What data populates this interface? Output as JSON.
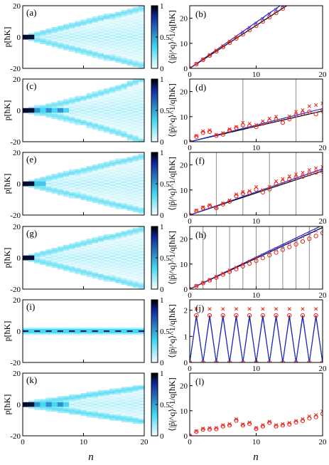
{
  "figure": {
    "x_axis_label": "n",
    "colorbar_ticks": [
      "1",
      "0.5",
      "0"
    ],
    "heatmap_ylabel_parts": [
      "p",
      "[",
      "ħ",
      "K",
      "]"
    ],
    "moment_ylabel_text": "⟨|p̂|^q⟩^1/q[ħK]"
  },
  "colors": {
    "circle": "#e8231a",
    "cross": "#e8231a",
    "purple_cross": "#6a3fc8",
    "blue_line": "#1f2ad6",
    "black_line": "#000000",
    "grid_line": "#8c8c8c",
    "cmap_low": "#ffffff",
    "cmap_mid": "#45d9f2",
    "cmap_high": "#10249a",
    "cmap_top": "#000000"
  },
  "chart_data": [
    {
      "type": "heatmap",
      "label": "(a)",
      "xlim": [
        0,
        20
      ],
      "ylim": [
        -20,
        20
      ],
      "xticks": [
        0,
        10,
        20
      ],
      "yticks": [
        -20,
        0,
        20
      ],
      "pattern": "ballistic",
      "colorbar": [
        0,
        1
      ]
    },
    {
      "type": "scatter",
      "label": "(b)",
      "xlim": [
        0,
        20
      ],
      "ylim": [
        0,
        25
      ],
      "xticks": [
        0,
        10,
        20
      ],
      "yticks": [
        0,
        10,
        20
      ],
      "circles": [
        [
          0,
          0
        ],
        [
          1,
          1.7
        ],
        [
          2,
          3.4
        ],
        [
          3,
          5.1
        ],
        [
          4,
          6.8
        ],
        [
          5,
          8.5
        ],
        [
          6,
          10.2
        ],
        [
          7,
          11.9
        ],
        [
          8,
          13.6
        ],
        [
          9,
          15.3
        ],
        [
          10,
          17.0
        ],
        [
          11,
          18.7
        ],
        [
          12,
          20.4
        ],
        [
          13,
          22.1
        ],
        [
          14,
          23.8
        ]
      ],
      "crosses": [
        [
          0,
          0
        ],
        [
          1,
          1.8
        ],
        [
          2,
          3.6
        ],
        [
          3,
          5.4
        ],
        [
          4,
          7.2
        ],
        [
          5,
          9.0
        ],
        [
          6,
          10.8
        ],
        [
          7,
          12.6
        ],
        [
          8,
          14.4
        ],
        [
          9,
          16.2
        ],
        [
          10,
          18.0
        ],
        [
          11,
          19.8
        ],
        [
          12,
          21.6
        ],
        [
          13,
          23.4
        ],
        [
          14,
          25.0
        ]
      ],
      "black_line": [
        [
          0,
          0
        ],
        [
          14.6,
          25
        ]
      ],
      "blue_line": [
        [
          0,
          0
        ],
        [
          13.6,
          25
        ]
      ],
      "vlines": []
    },
    {
      "type": "heatmap",
      "label": "(c)",
      "xlim": [
        0,
        20
      ],
      "ylim": [
        -20,
        20
      ],
      "xticks": [
        0,
        10,
        20
      ],
      "yticks": [
        -20,
        0,
        20
      ],
      "pattern": "delayed",
      "colorbar": [
        0,
        1
      ]
    },
    {
      "type": "scatter",
      "label": "(d)",
      "xlim": [
        0,
        20
      ],
      "ylim": [
        0,
        25
      ],
      "xticks": [
        0,
        10,
        20
      ],
      "yticks": [
        0,
        10,
        20
      ],
      "circles": [
        [
          0,
          0
        ],
        [
          1,
          2.0
        ],
        [
          2,
          3.6
        ],
        [
          3,
          4.0
        ],
        [
          4,
          2.4
        ],
        [
          5,
          2.9
        ],
        [
          6,
          4.5
        ],
        [
          7,
          5.5
        ],
        [
          8,
          6.6
        ],
        [
          9,
          6.3
        ],
        [
          10,
          5.9
        ],
        [
          11,
          7.3
        ],
        [
          12,
          8.2
        ],
        [
          13,
          8.8
        ],
        [
          14,
          7.6
        ],
        [
          15,
          9.0
        ],
        [
          16,
          10.6
        ],
        [
          17,
          11.3
        ],
        [
          18,
          11.9
        ],
        [
          19,
          11.0
        ],
        [
          20,
          12.3
        ]
      ],
      "crosses": [
        [
          0,
          0
        ],
        [
          1,
          2.4
        ],
        [
          2,
          4.2
        ],
        [
          3,
          4.6
        ],
        [
          4,
          2.8
        ],
        [
          5,
          3.5
        ],
        [
          6,
          5.0
        ],
        [
          7,
          6.0
        ],
        [
          8,
          7.6
        ],
        [
          9,
          7.2
        ],
        [
          10,
          6.7
        ],
        [
          11,
          8.2
        ],
        [
          12,
          9.3
        ],
        [
          13,
          10.0
        ],
        [
          14,
          8.5
        ],
        [
          15,
          10.1
        ],
        [
          16,
          12.0
        ],
        [
          17,
          12.6
        ],
        [
          18,
          14.2
        ],
        [
          19,
          14.6
        ],
        [
          20,
          15.3
        ]
      ],
      "black_line": [
        [
          0,
          0
        ],
        [
          20,
          12.3
        ]
      ],
      "blue_line": [
        [
          0,
          0
        ],
        [
          20,
          13.2
        ]
      ],
      "vlines": [
        8,
        16
      ]
    },
    {
      "type": "heatmap",
      "label": "(e)",
      "xlim": [
        0,
        20
      ],
      "ylim": [
        -20,
        20
      ],
      "xticks": [
        0,
        10,
        20
      ],
      "yticks": [
        -20,
        0,
        20
      ],
      "pattern": "ballistic2",
      "colorbar": [
        0,
        1
      ]
    },
    {
      "type": "scatter",
      "label": "(f)",
      "xlim": [
        0,
        20
      ],
      "ylim": [
        0,
        25
      ],
      "xticks": [
        0,
        10,
        20
      ],
      "yticks": [
        0,
        10,
        20
      ],
      "circles": [
        [
          0,
          0
        ],
        [
          1,
          1.6
        ],
        [
          2,
          2.8
        ],
        [
          3,
          3.6
        ],
        [
          4,
          2.8
        ],
        [
          5,
          4.3
        ],
        [
          6,
          5.4
        ],
        [
          7,
          7.6
        ],
        [
          8,
          8.5
        ],
        [
          9,
          8.9
        ],
        [
          10,
          10.2
        ],
        [
          11,
          9.1
        ],
        [
          12,
          10.3
        ],
        [
          13,
          12.4
        ],
        [
          14,
          13.2
        ],
        [
          15,
          14.2
        ],
        [
          16,
          14.9
        ],
        [
          17,
          15.4
        ],
        [
          18,
          16.4
        ],
        [
          19,
          17.0
        ],
        [
          20,
          17.4
        ]
      ],
      "crosses": [
        [
          0,
          0
        ],
        [
          1,
          1.8
        ],
        [
          2,
          3.1
        ],
        [
          3,
          4.0
        ],
        [
          4,
          3.1
        ],
        [
          5,
          4.7
        ],
        [
          6,
          5.9
        ],
        [
          7,
          8.3
        ],
        [
          8,
          9.2
        ],
        [
          9,
          9.6
        ],
        [
          10,
          11.2
        ],
        [
          11,
          10.0
        ],
        [
          12,
          11.3
        ],
        [
          13,
          13.5
        ],
        [
          14,
          14.4
        ],
        [
          15,
          15.5
        ],
        [
          16,
          16.3
        ],
        [
          17,
          16.9
        ],
        [
          18,
          18.0
        ],
        [
          19,
          18.7
        ],
        [
          20,
          19.2
        ]
      ],
      "black_line": [
        [
          0,
          0
        ],
        [
          20,
          17.6
        ]
      ],
      "blue_line": [
        [
          0,
          0
        ],
        [
          20,
          18.4
        ]
      ],
      "vlines": [
        4,
        8,
        12,
        16
      ]
    },
    {
      "type": "heatmap",
      "label": "(g)",
      "xlim": [
        0,
        20
      ],
      "ylim": [
        -20,
        20
      ],
      "xticks": [
        0,
        10,
        20
      ],
      "yticks": [
        -20,
        0,
        20
      ],
      "pattern": "ballistic",
      "colorbar": [
        0,
        1
      ]
    },
    {
      "type": "scatter",
      "label": "(h)",
      "xlim": [
        0,
        20
      ],
      "ylim": [
        0,
        25
      ],
      "xticks": [
        0,
        10,
        20
      ],
      "yticks": [
        0,
        10,
        20
      ],
      "circles": [
        [
          0,
          0
        ],
        [
          1,
          1.2
        ],
        [
          2,
          2.4
        ],
        [
          3,
          3.5
        ],
        [
          4,
          4.6
        ],
        [
          5,
          5.8
        ],
        [
          6,
          6.9
        ],
        [
          7,
          8.0
        ],
        [
          8,
          9.1
        ],
        [
          9,
          10.2
        ],
        [
          10,
          11.3
        ],
        [
          11,
          12.4
        ],
        [
          12,
          13.5
        ],
        [
          13,
          14.6
        ],
        [
          14,
          15.7
        ],
        [
          15,
          16.8
        ],
        [
          16,
          17.9
        ],
        [
          17,
          19.0
        ],
        [
          18,
          20.1
        ],
        [
          19,
          21.2
        ],
        [
          20,
          22.4
        ]
      ],
      "crosses": [
        [
          0,
          0
        ],
        [
          1,
          1.3
        ],
        [
          2,
          2.6
        ],
        [
          3,
          3.8
        ],
        [
          4,
          5.0
        ],
        [
          5,
          6.3
        ],
        [
          6,
          7.5
        ],
        [
          7,
          8.7
        ],
        [
          8,
          9.9
        ],
        [
          9,
          11.1
        ],
        [
          10,
          12.3
        ],
        [
          11,
          13.6
        ],
        [
          12,
          14.8
        ],
        [
          13,
          16.0
        ],
        [
          14,
          17.2
        ],
        [
          15,
          18.4
        ],
        [
          16,
          19.6
        ],
        [
          17,
          20.9
        ],
        [
          18,
          22.1
        ],
        [
          19,
          23.3
        ],
        [
          20,
          24.6
        ]
      ],
      "black_line": [
        [
          0,
          0
        ],
        [
          20,
          24.6
        ]
      ],
      "blue_line": [
        [
          0,
          0
        ],
        [
          20,
          25.5
        ]
      ],
      "vlines": [
        2,
        4,
        6,
        8,
        10,
        12,
        14,
        16,
        18
      ]
    },
    {
      "type": "heatmap",
      "label": "(i)",
      "xlim": [
        0,
        20
      ],
      "ylim": [
        -20,
        20
      ],
      "xticks": [
        0,
        10,
        20
      ],
      "yticks": [
        -20,
        0,
        20
      ],
      "pattern": "localized",
      "colorbar": [
        0,
        1
      ]
    },
    {
      "type": "scatter",
      "label": "(j)",
      "xlim": [
        0,
        20
      ],
      "ylim": [
        0,
        2.4
      ],
      "xticks": [
        0,
        10,
        20
      ],
      "yticks": [
        0,
        1,
        2
      ],
      "circles": [
        [
          0,
          0
        ],
        [
          1,
          1.8
        ],
        [
          2,
          0
        ],
        [
          3,
          1.8
        ],
        [
          4,
          0
        ],
        [
          5,
          1.8
        ],
        [
          6,
          0
        ],
        [
          7,
          1.8
        ],
        [
          8,
          0
        ],
        [
          9,
          1.8
        ],
        [
          10,
          0
        ],
        [
          11,
          1.8
        ],
        [
          12,
          0
        ],
        [
          13,
          1.8
        ],
        [
          14,
          0
        ],
        [
          15,
          1.8
        ],
        [
          16,
          0
        ],
        [
          17,
          1.8
        ],
        [
          18,
          0
        ],
        [
          19,
          1.8
        ],
        [
          20,
          0
        ]
      ],
      "crosses": [
        [
          1,
          2.05
        ],
        [
          3,
          2.05
        ],
        [
          5,
          2.05
        ],
        [
          7,
          2.05
        ],
        [
          9,
          2.05
        ],
        [
          11,
          2.05
        ],
        [
          13,
          2.05
        ],
        [
          15,
          2.05
        ],
        [
          17,
          2.05
        ],
        [
          19,
          2.05
        ]
      ],
      "zigzag": true,
      "black_line": [],
      "blue_line": [],
      "vlines": []
    },
    {
      "type": "heatmap",
      "label": "(k)",
      "xlim": [
        0,
        20
      ],
      "ylim": [
        -20,
        20
      ],
      "xticks": [
        0,
        10,
        20
      ],
      "yticks": [
        -20,
        0,
        20
      ],
      "pattern": "slow",
      "colorbar": [
        0,
        1
      ]
    },
    {
      "type": "scatter",
      "label": "(l)",
      "xlim": [
        0,
        20
      ],
      "ylim": [
        0,
        25
      ],
      "xticks": [
        0,
        10,
        20
      ],
      "yticks": [
        0,
        10,
        20
      ],
      "circles": [
        [
          0,
          0
        ],
        [
          1,
          1.6
        ],
        [
          2,
          2.5
        ],
        [
          3,
          2.6
        ],
        [
          4,
          2.7
        ],
        [
          5,
          3.8
        ],
        [
          6,
          4.2
        ],
        [
          7,
          6.1
        ],
        [
          8,
          4.2
        ],
        [
          9,
          4.8
        ],
        [
          10,
          2.8
        ],
        [
          11,
          3.8
        ],
        [
          12,
          5.2
        ],
        [
          13,
          3.8
        ],
        [
          14,
          4.2
        ],
        [
          15,
          4.6
        ],
        [
          16,
          5.4
        ],
        [
          17,
          6.0
        ],
        [
          18,
          7.0
        ],
        [
          19,
          7.5
        ],
        [
          20,
          8.8
        ]
      ],
      "crosses": [
        [
          0,
          0
        ],
        [
          1,
          1.9
        ],
        [
          2,
          2.9
        ],
        [
          3,
          3.1
        ],
        [
          4,
          3.2
        ],
        [
          5,
          4.3
        ],
        [
          6,
          4.7
        ],
        [
          7,
          6.7
        ],
        [
          8,
          4.6
        ],
        [
          9,
          5.3
        ],
        [
          10,
          3.2
        ],
        [
          11,
          4.3
        ],
        [
          12,
          5.7
        ],
        [
          13,
          4.3
        ],
        [
          14,
          4.7
        ],
        [
          15,
          5.2
        ],
        [
          16,
          6.0
        ],
        [
          17,
          6.7
        ],
        [
          18,
          7.8
        ],
        [
          19,
          8.3
        ],
        [
          20,
          9.8
        ]
      ],
      "black_line": [],
      "blue_line": [],
      "vlines": []
    }
  ]
}
